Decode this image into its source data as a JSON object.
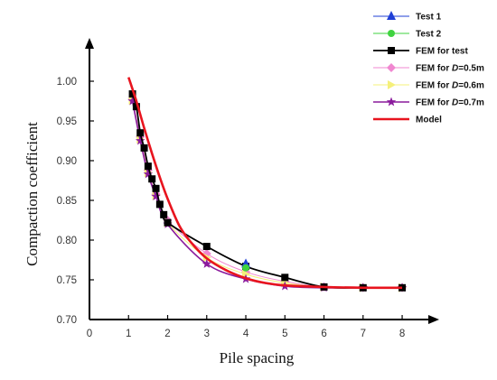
{
  "chart_data": {
    "type": "line",
    "title": "",
    "xlabel": "Pile spacing",
    "ylabel": "Compaction coefficient",
    "xlim": [
      0,
      8.6
    ],
    "ylim": [
      0.7,
      1.05
    ],
    "x_ticks": [
      "0",
      "1",
      "2",
      "3",
      "4",
      "5",
      "6",
      "7",
      "8"
    ],
    "y_ticks": [
      "0.70",
      "0.75",
      "0.80",
      "0.85",
      "0.90",
      "0.95",
      "1.00"
    ],
    "grid": false,
    "legend_position": "top-right",
    "series": [
      {
        "name": "Test 1",
        "legend_text": "Test 1",
        "color": "#1f3fd6",
        "marker": "triangle-up",
        "draw_line": false,
        "points": [
          [
            4.0,
            0.77
          ]
        ]
      },
      {
        "name": "Test 2",
        "legend_text": "Test 2",
        "color": "#3fd33f",
        "marker": "circle",
        "draw_line": false,
        "points": [
          [
            4.0,
            0.765
          ]
        ]
      },
      {
        "name": "FEM for test",
        "legend_text": "FEM for test",
        "color": "#000000",
        "marker": "square",
        "draw_line": true,
        "line_width": 1.8,
        "points": [
          [
            1.1,
            0.984
          ],
          [
            1.2,
            0.968
          ],
          [
            1.3,
            0.935
          ],
          [
            1.4,
            0.916
          ],
          [
            1.5,
            0.893
          ],
          [
            1.6,
            0.877
          ],
          [
            1.7,
            0.865
          ],
          [
            1.8,
            0.845
          ],
          [
            1.9,
            0.832
          ],
          [
            2.0,
            0.822
          ],
          [
            3.0,
            0.792
          ],
          [
            4.0,
            0.767
          ],
          [
            5.0,
            0.753
          ],
          [
            6.0,
            0.741
          ],
          [
            7.0,
            0.74
          ],
          [
            8.0,
            0.74
          ]
        ]
      },
      {
        "name": "FEM for D=0.5m",
        "legend_parts": [
          "FEM for ",
          "D",
          "=0.5m"
        ],
        "color": "#f087d0",
        "marker": "diamond",
        "draw_line": true,
        "line_width": 1,
        "points": [
          [
            1.1,
            0.978
          ],
          [
            1.3,
            0.93
          ],
          [
            1.5,
            0.888
          ],
          [
            1.7,
            0.858
          ],
          [
            2.0,
            0.825
          ],
          [
            3.0,
            0.783
          ],
          [
            4.0,
            0.76
          ],
          [
            5.0,
            0.748
          ],
          [
            6.0,
            0.741
          ],
          [
            7.0,
            0.74
          ],
          [
            8.0,
            0.74
          ]
        ]
      },
      {
        "name": "FEM for D=0.6m",
        "legend_parts": [
          "FEM for ",
          "D",
          "=0.6m"
        ],
        "color": "#f5f07a",
        "marker": "triangle-right",
        "draw_line": true,
        "line_width": 1,
        "points": [
          [
            1.1,
            0.976
          ],
          [
            1.3,
            0.927
          ],
          [
            1.5,
            0.885
          ],
          [
            1.7,
            0.856
          ],
          [
            2.0,
            0.822
          ],
          [
            3.0,
            0.778
          ],
          [
            4.0,
            0.757
          ],
          [
            5.0,
            0.746
          ],
          [
            6.0,
            0.741
          ],
          [
            7.0,
            0.74
          ],
          [
            8.0,
            0.74
          ]
        ]
      },
      {
        "name": "FEM for D=0.7m",
        "legend_parts": [
          "FEM for ",
          "D",
          "=0.7m"
        ],
        "color": "#8a1a9c",
        "marker": "star",
        "draw_line": true,
        "line_width": 1.6,
        "points": [
          [
            1.1,
            0.975
          ],
          [
            1.3,
            0.925
          ],
          [
            1.5,
            0.883
          ],
          [
            1.7,
            0.855
          ],
          [
            2.0,
            0.82
          ],
          [
            3.0,
            0.77
          ],
          [
            4.0,
            0.751
          ],
          [
            5.0,
            0.742
          ],
          [
            6.0,
            0.74
          ],
          [
            7.0,
            0.74
          ],
          [
            8.0,
            0.74
          ]
        ]
      },
      {
        "name": "Model",
        "legend_text": "Model",
        "color": "#e8141e",
        "marker": "none",
        "draw_line": true,
        "line_width": 2.6,
        "points": [
          [
            1.0,
            1.005
          ],
          [
            1.2,
            0.975
          ],
          [
            1.4,
            0.941
          ],
          [
            1.6,
            0.909
          ],
          [
            1.8,
            0.879
          ],
          [
            2.0,
            0.852
          ],
          [
            2.3,
            0.818
          ],
          [
            2.6,
            0.797
          ],
          [
            3.0,
            0.777
          ],
          [
            3.5,
            0.762
          ],
          [
            4.0,
            0.752
          ],
          [
            4.5,
            0.746
          ],
          [
            5.0,
            0.743
          ],
          [
            6.0,
            0.741
          ],
          [
            7.0,
            0.74
          ],
          [
            8.0,
            0.74
          ]
        ]
      }
    ]
  }
}
